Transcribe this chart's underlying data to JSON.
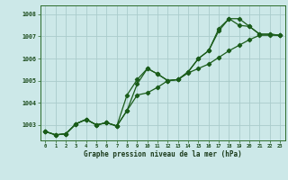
{
  "title": "Graphe pression niveau de la mer (hPa)",
  "bg_color": "#cce8e8",
  "grid_color": "#aacccc",
  "line_color": "#1a5c1a",
  "xlim": [
    -0.5,
    23.5
  ],
  "ylim": [
    1002.3,
    1008.4
  ],
  "yticks": [
    1003,
    1004,
    1005,
    1006,
    1007,
    1008
  ],
  "xticks": [
    0,
    1,
    2,
    3,
    4,
    5,
    6,
    7,
    8,
    9,
    10,
    11,
    12,
    13,
    14,
    15,
    16,
    17,
    18,
    19,
    20,
    21,
    22,
    23
  ],
  "series1": [
    1002.7,
    1002.55,
    1002.6,
    1003.05,
    1003.25,
    1003.0,
    1003.1,
    1002.95,
    1003.65,
    1004.35,
    1004.45,
    1004.7,
    1005.0,
    1005.05,
    1005.35,
    1005.55,
    1005.75,
    1006.05,
    1006.35,
    1006.6,
    1006.85,
    1007.05,
    1007.05,
    1007.05
  ],
  "series2": [
    1002.7,
    1002.55,
    1002.6,
    1003.05,
    1003.25,
    1003.0,
    1003.1,
    1002.95,
    1004.35,
    1005.05,
    1005.55,
    1005.3,
    1005.0,
    1005.05,
    1005.4,
    1006.0,
    1006.35,
    1007.35,
    1007.8,
    1007.5,
    1007.45,
    1007.1,
    1007.1,
    1007.05
  ],
  "series3": [
    1002.7,
    1002.55,
    1002.6,
    1003.05,
    1003.25,
    1003.0,
    1003.1,
    1002.95,
    1003.65,
    1004.85,
    1005.55,
    1005.3,
    1005.0,
    1005.05,
    1005.4,
    1006.0,
    1006.35,
    1007.25,
    1007.8,
    1007.8,
    1007.45,
    1007.1,
    1007.1,
    1007.05
  ]
}
